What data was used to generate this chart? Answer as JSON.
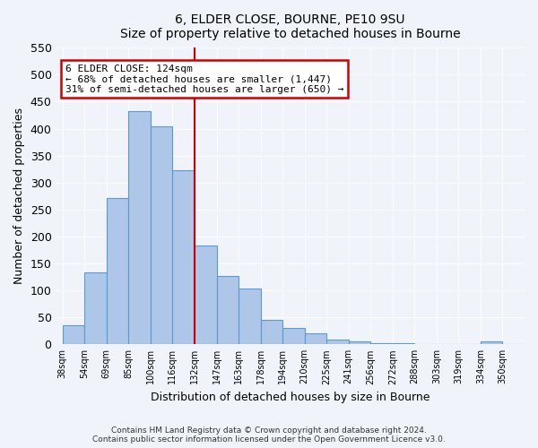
{
  "title": "6, ELDER CLOSE, BOURNE, PE10 9SU",
  "subtitle": "Size of property relative to detached houses in Bourne",
  "xlabel": "Distribution of detached houses by size in Bourne",
  "ylabel": "Number of detached properties",
  "bar_labels": [
    "38sqm",
    "54sqm",
    "69sqm",
    "85sqm",
    "100sqm",
    "116sqm",
    "132sqm",
    "147sqm",
    "163sqm",
    "178sqm",
    "194sqm",
    "210sqm",
    "225sqm",
    "241sqm",
    "256sqm",
    "272sqm",
    "288sqm",
    "303sqm",
    "319sqm",
    "334sqm",
    "350sqm"
  ],
  "bar_values": [
    35,
    133,
    272,
    432,
    405,
    323,
    184,
    127,
    103,
    45,
    30,
    20,
    8,
    6,
    2,
    2,
    1,
    1,
    1,
    5,
    0
  ],
  "bar_color": "#aec6e8",
  "bar_edge_color": "#5b9bd5",
  "ylim": [
    0,
    550
  ],
  "yticks": [
    0,
    50,
    100,
    150,
    200,
    250,
    300,
    350,
    400,
    450,
    500,
    550
  ],
  "property_label": "6 ELDER CLOSE: 124sqm",
  "annotation_line1": "← 68% of detached houses are smaller (1,447)",
  "annotation_line2": "31% of semi-detached houses are larger (650) →",
  "annotation_box_color": "#ffffff",
  "annotation_box_edge_color": "#cc0000",
  "vline_color": "#cc0000",
  "vline_x": 6.0,
  "footer_line1": "Contains HM Land Registry data © Crown copyright and database right 2024.",
  "footer_line2": "Contains public sector information licensed under the Open Government Licence v3.0.",
  "background_color": "#f0f4fa"
}
